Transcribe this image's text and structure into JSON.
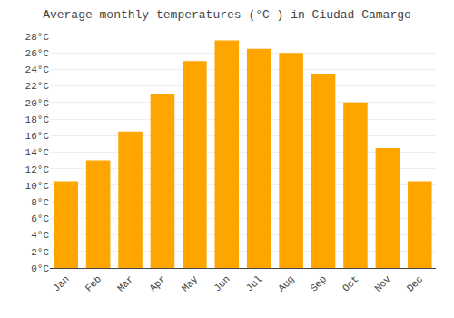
{
  "chart_data": {
    "type": "bar",
    "title": "Average monthly temperatures (°C ) in Ciudad Camargo",
    "categories": [
      "Jan",
      "Feb",
      "Mar",
      "Apr",
      "May",
      "Jun",
      "Jul",
      "Aug",
      "Sep",
      "Oct",
      "Nov",
      "Dec"
    ],
    "values": [
      10.5,
      13.0,
      16.5,
      21.0,
      25.0,
      27.5,
      26.5,
      26.0,
      23.5,
      20.0,
      14.5,
      10.5
    ],
    "color": "#FFA500",
    "ylim": [
      0,
      28
    ],
    "yticks": [
      {
        "value": 0,
        "label": "0°C"
      },
      {
        "value": 2,
        "label": "2°C"
      },
      {
        "value": 4,
        "label": "4°C"
      },
      {
        "value": 6,
        "label": "6°C"
      },
      {
        "value": 8,
        "label": "8°C"
      },
      {
        "value": 10,
        "label": "10°C"
      },
      {
        "value": 12,
        "label": "12°C"
      },
      {
        "value": 14,
        "label": "14°C"
      },
      {
        "value": 16,
        "label": "16°C"
      },
      {
        "value": 18,
        "label": "18°C"
      },
      {
        "value": 20,
        "label": "20°C"
      },
      {
        "value": 22,
        "label": "22°C"
      },
      {
        "value": 24,
        "label": "24°C"
      },
      {
        "value": 26,
        "label": "26°C"
      },
      {
        "value": 28,
        "label": "28°C"
      }
    ],
    "grid": true
  }
}
